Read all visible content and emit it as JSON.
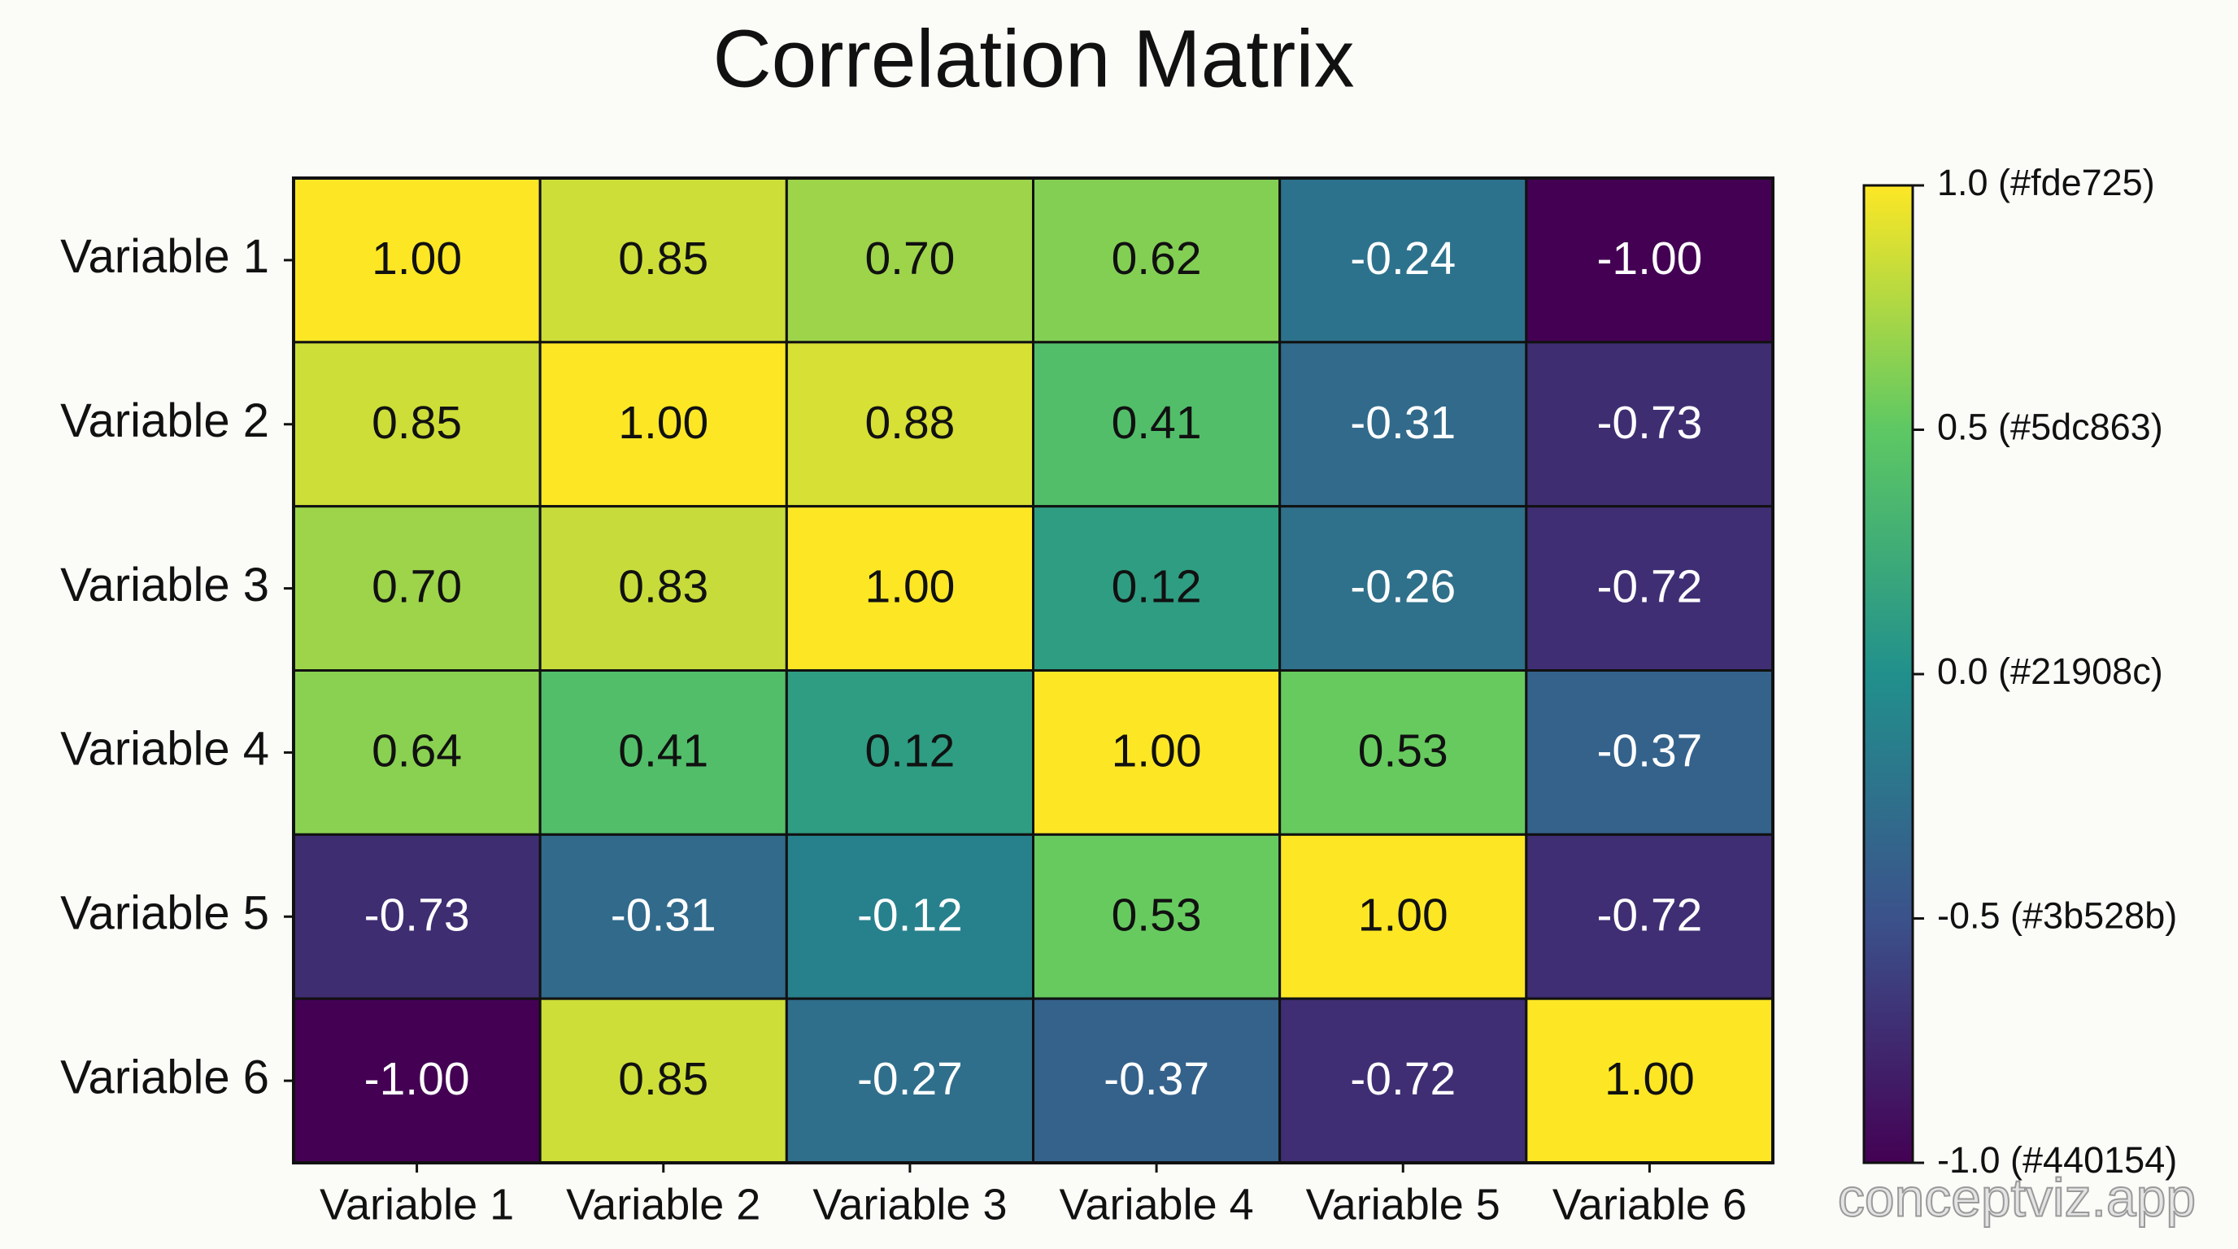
{
  "chart_data": {
    "type": "heatmap",
    "title": "Correlation Matrix",
    "x_categories": [
      "Variable 1",
      "Variable 2",
      "Variable 3",
      "Variable 4",
      "Variable 5",
      "Variable 6"
    ],
    "y_categories": [
      "Variable 1",
      "Variable 2",
      "Variable 3",
      "Variable 4",
      "Variable 5",
      "Variable 6"
    ],
    "values": [
      [
        1,
        0.85,
        0.7,
        0.62,
        -0.24,
        -1
      ],
      [
        0.85,
        1,
        0.88,
        0.41,
        -0.31,
        -0.73
      ],
      [
        0.7,
        0.83,
        1,
        0.12,
        -0.26,
        -0.72
      ],
      [
        0.64,
        0.41,
        0.12,
        1,
        0.53,
        -0.37
      ],
      [
        -0.73,
        -0.31,
        -0.12,
        0.53,
        1,
        -0.72
      ],
      [
        -1,
        0.85,
        -0.27,
        -0.37,
        -0.72,
        1
      ]
    ],
    "value_labels": [
      [
        "1.00",
        "0.85",
        "0.70",
        "0.62",
        "-0.24",
        "-1.00"
      ],
      [
        "0.85",
        "1.00",
        "0.88",
        "0.41",
        "-0.31",
        "-0.73"
      ],
      [
        "0.70",
        "0.83",
        "1.00",
        "0.12",
        "-0.26",
        "-0.72"
      ],
      [
        "0.64",
        "0.41",
        "0.12",
        "1.00",
        "0.53",
        "-0.37"
      ],
      [
        "-0.73",
        "-0.31",
        "-0.12",
        "0.53",
        "1.00",
        "-0.72"
      ],
      [
        "-1.00",
        "0.85",
        "-0.27",
        "-0.37",
        "-0.72",
        "1.00"
      ]
    ],
    "colormap": [
      "#440154",
      "#3b528b",
      "#21908c",
      "#5dc863",
      "#fde725"
    ],
    "zlim": [
      -1,
      1
    ],
    "zticks": [
      {
        "value": 1,
        "label": "1.0 (#fde725)"
      },
      {
        "value": 0.5,
        "label": "0.5 (#5dc863)"
      },
      {
        "value": 0,
        "label": "0.0 (#21908c)"
      },
      {
        "value": -0.5,
        "label": "-0.5 (#3b528b)"
      },
      {
        "value": -1,
        "label": "-1.0 (#440154)"
      }
    ],
    "watermark": "conceptviz.app"
  }
}
